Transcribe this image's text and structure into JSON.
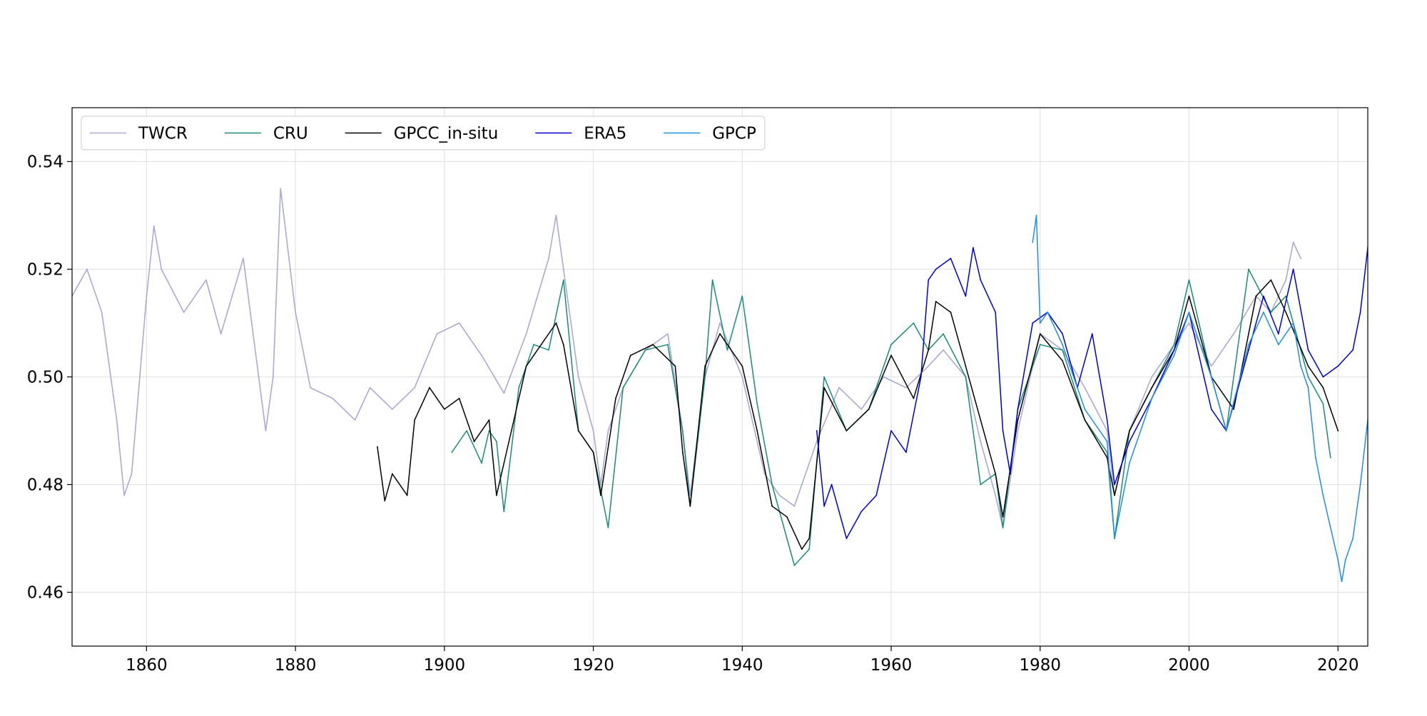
{
  "chart_data": {
    "type": "line",
    "title": "",
    "xlabel": "",
    "ylabel": "",
    "xlim": [
      1850,
      2024
    ],
    "ylim": [
      0.45,
      0.55
    ],
    "x_ticks": [
      1860,
      1880,
      1900,
      1920,
      1940,
      1960,
      1980,
      2000,
      2020
    ],
    "y_ticks": [
      0.46,
      0.48,
      0.5,
      0.52,
      0.54
    ],
    "x_tick_labels": [
      "1860",
      "1880",
      "1900",
      "1920",
      "1940",
      "1960",
      "1980",
      "2000",
      "2020"
    ],
    "y_tick_labels": [
      "0.46",
      "0.48",
      "0.50",
      "0.52",
      "0.54"
    ],
    "grid": true,
    "legend": {
      "placement": "top-left",
      "columns": 5
    },
    "series": [
      {
        "name": "TWCR",
        "color": "#aaaad2",
        "x": [
          1850,
          1852,
          1854,
          1856,
          1857,
          1858,
          1860,
          1861,
          1862,
          1865,
          1868,
          1870,
          1873,
          1876,
          1877,
          1878,
          1880,
          1882,
          1885,
          1888,
          1890,
          1893,
          1896,
          1899,
          1902,
          1905,
          1908,
          1911,
          1914,
          1915,
          1916,
          1918,
          1920,
          1921,
          1922,
          1924,
          1927,
          1930,
          1932,
          1933,
          1935,
          1937,
          1940,
          1943,
          1945,
          1947,
          1948,
          1950,
          1953,
          1956,
          1959,
          1962,
          1965,
          1967,
          1970,
          1972,
          1974,
          1975,
          1977,
          1980,
          1983,
          1986,
          1989,
          1990,
          1992,
          1995,
          1998,
          2000,
          2003,
          2006,
          2009,
          2011,
          2013,
          2014,
          2015
        ],
        "y": [
          0.515,
          0.52,
          0.512,
          0.492,
          0.478,
          0.482,
          0.515,
          0.528,
          0.52,
          0.512,
          0.518,
          0.508,
          0.522,
          0.49,
          0.5,
          0.535,
          0.512,
          0.498,
          0.496,
          0.492,
          0.498,
          0.494,
          0.498,
          0.508,
          0.51,
          0.504,
          0.497,
          0.508,
          0.522,
          0.53,
          0.52,
          0.5,
          0.49,
          0.48,
          0.49,
          0.498,
          0.505,
          0.508,
          0.49,
          0.478,
          0.5,
          0.51,
          0.5,
          0.482,
          0.478,
          0.476,
          0.48,
          0.488,
          0.498,
          0.494,
          0.5,
          0.498,
          0.502,
          0.505,
          0.5,
          0.488,
          0.478,
          0.472,
          0.49,
          0.508,
          0.505,
          0.498,
          0.49,
          0.478,
          0.49,
          0.5,
          0.506,
          0.51,
          0.502,
          0.508,
          0.515,
          0.512,
          0.518,
          0.525,
          0.522
        ]
      },
      {
        "name": "CRU",
        "color": "#1a8a7a",
        "x": [
          1901,
          1903,
          1905,
          1906,
          1907,
          1908,
          1910,
          1912,
          1914,
          1916,
          1918,
          1920,
          1922,
          1924,
          1927,
          1930,
          1932,
          1933,
          1935,
          1936,
          1938,
          1940,
          1942,
          1944,
          1946,
          1947,
          1949,
          1951,
          1954,
          1957,
          1960,
          1963,
          1965,
          1967,
          1970,
          1972,
          1974,
          1975,
          1977,
          1980,
          1983,
          1986,
          1989,
          1990,
          1992,
          1995,
          1998,
          2000,
          2003,
          2005,
          2008,
          2011,
          2013,
          2016,
          2018,
          2019
        ],
        "y": [
          0.486,
          0.49,
          0.484,
          0.49,
          0.488,
          0.475,
          0.498,
          0.506,
          0.505,
          0.518,
          0.49,
          0.486,
          0.472,
          0.498,
          0.505,
          0.506,
          0.49,
          0.476,
          0.5,
          0.518,
          0.505,
          0.515,
          0.495,
          0.48,
          0.47,
          0.465,
          0.468,
          0.5,
          0.49,
          0.494,
          0.506,
          0.51,
          0.505,
          0.508,
          0.5,
          0.48,
          0.482,
          0.472,
          0.494,
          0.506,
          0.505,
          0.492,
          0.486,
          0.47,
          0.49,
          0.498,
          0.506,
          0.518,
          0.5,
          0.49,
          0.52,
          0.512,
          0.515,
          0.5,
          0.495,
          0.485
        ]
      },
      {
        "name": "GPCC_in-situ",
        "color": "#000000",
        "x": [
          1891,
          1892,
          1893,
          1895,
          1896,
          1898,
          1900,
          1902,
          1904,
          1906,
          1907,
          1909,
          1911,
          1913,
          1915,
          1916,
          1918,
          1920,
          1921,
          1923,
          1925,
          1928,
          1931,
          1932,
          1933,
          1935,
          1937,
          1940,
          1942,
          1944,
          1946,
          1948,
          1949,
          1951,
          1954,
          1957,
          1960,
          1963,
          1965,
          1966,
          1968,
          1970,
          1972,
          1974,
          1975,
          1977,
          1980,
          1983,
          1986,
          1989,
          1990,
          1992,
          1995,
          1998,
          2000,
          2003,
          2006,
          2009,
          2011,
          2013,
          2016,
          2018,
          2019,
          2020
        ],
        "y": [
          0.487,
          0.477,
          0.482,
          0.478,
          0.492,
          0.498,
          0.494,
          0.496,
          0.488,
          0.492,
          0.478,
          0.49,
          0.502,
          0.506,
          0.51,
          0.506,
          0.49,
          0.486,
          0.478,
          0.496,
          0.504,
          0.506,
          0.502,
          0.486,
          0.476,
          0.502,
          0.508,
          0.502,
          0.49,
          0.476,
          0.474,
          0.468,
          0.47,
          0.498,
          0.49,
          0.494,
          0.504,
          0.496,
          0.505,
          0.514,
          0.512,
          0.502,
          0.492,
          0.482,
          0.474,
          0.492,
          0.508,
          0.503,
          0.492,
          0.485,
          0.478,
          0.49,
          0.498,
          0.505,
          0.515,
          0.5,
          0.494,
          0.515,
          0.518,
          0.512,
          0.502,
          0.498,
          0.494,
          0.49
        ]
      },
      {
        "name": "ERA5",
        "color": "#0000cc",
        "x": [
          1950,
          1951,
          1952,
          1954,
          1956,
          1958,
          1960,
          1962,
          1964,
          1965,
          1966,
          1968,
          1970,
          1971,
          1972,
          1974,
          1975,
          1976,
          1977,
          1979,
          1981,
          1983,
          1985,
          1987,
          1989,
          1990,
          1992,
          1995,
          1998,
          2000,
          2003,
          2005,
          2008,
          2010,
          2012,
          2014,
          2016,
          2018,
          2020,
          2022,
          2023,
          2024
        ],
        "y": [
          0.49,
          0.476,
          0.48,
          0.47,
          0.475,
          0.478,
          0.49,
          0.486,
          0.5,
          0.518,
          0.52,
          0.522,
          0.515,
          0.524,
          0.518,
          0.512,
          0.49,
          0.482,
          0.494,
          0.51,
          0.512,
          0.508,
          0.498,
          0.508,
          0.492,
          0.48,
          0.488,
          0.496,
          0.505,
          0.512,
          0.494,
          0.49,
          0.505,
          0.515,
          0.508,
          0.52,
          0.505,
          0.5,
          0.502,
          0.505,
          0.512,
          0.524
        ]
      },
      {
        "name": "GPCP",
        "color": "#1f8ee0",
        "x": [
          1979,
          1979.5,
          1980,
          1981,
          1983,
          1986,
          1989,
          1990,
          1992,
          1995,
          1998,
          2000,
          2003,
          2005,
          2008,
          2010,
          2012,
          2014,
          2015,
          2016,
          2017,
          2018,
          2019,
          2020,
          2020.5,
          2021,
          2022,
          2023,
          2024
        ],
        "y": [
          0.525,
          0.53,
          0.51,
          0.512,
          0.506,
          0.494,
          0.488,
          0.47,
          0.484,
          0.496,
          0.504,
          0.512,
          0.5,
          0.49,
          0.506,
          0.512,
          0.506,
          0.51,
          0.502,
          0.498,
          0.485,
          0.478,
          0.472,
          0.466,
          0.462,
          0.466,
          0.47,
          0.48,
          0.492
        ]
      }
    ]
  }
}
